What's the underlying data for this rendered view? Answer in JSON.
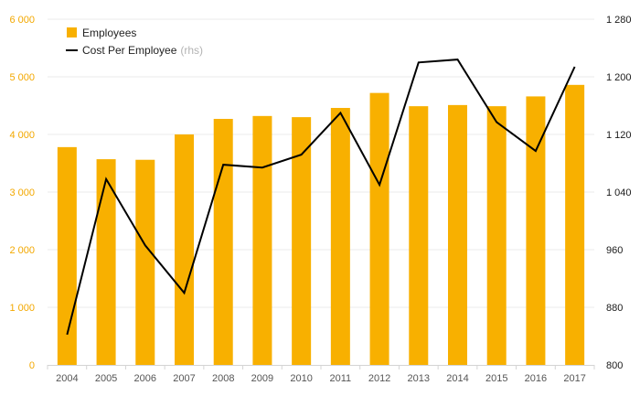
{
  "chart_data": {
    "type": "bar+line",
    "categories": [
      "2004",
      "2005",
      "2006",
      "2007",
      "2008",
      "2009",
      "2010",
      "2011",
      "2012",
      "2013",
      "2014",
      "2015",
      "2016",
      "2017"
    ],
    "series": [
      {
        "name": "Employees",
        "type": "bar",
        "axis": "left",
        "color": "#f8b000",
        "values": [
          3780,
          3570,
          3560,
          4000,
          4270,
          4320,
          4300,
          4460,
          4720,
          4490,
          4510,
          4490,
          4660,
          4860
        ]
      },
      {
        "name": "Cost Per Employee",
        "type": "line",
        "axis": "right",
        "color": "#000000",
        "values": [
          842,
          1058,
          966,
          900,
          1078,
          1074,
          1092,
          1150,
          1050,
          1220,
          1224,
          1137,
          1097,
          1214
        ]
      }
    ],
    "left_axis": {
      "min": 0,
      "max": 6000,
      "ticks": [
        "0",
        "1 000",
        "2 000",
        "3 000",
        "4 000",
        "5 000",
        "6 000"
      ],
      "tick_values": [
        0,
        1000,
        2000,
        3000,
        4000,
        5000,
        6000
      ],
      "color": "#f3a800"
    },
    "right_axis": {
      "min": 800,
      "max": 1280,
      "ticks": [
        "800",
        "880",
        "960",
        "1 040",
        "1 120",
        "1 200",
        "1 280"
      ],
      "tick_values": [
        800,
        880,
        960,
        1040,
        1120,
        1200,
        1280
      ],
      "color": "#1a1a1a"
    },
    "legend": {
      "position": "top-left",
      "items": [
        {
          "label": "Employees",
          "suffix": "",
          "marker": "square",
          "color": "#f8b000"
        },
        {
          "label": "Cost Per Employee",
          "suffix": "(rhs)",
          "marker": "line",
          "color": "#000000"
        }
      ]
    },
    "grid": true,
    "gridline_color": "#ebebeb"
  }
}
